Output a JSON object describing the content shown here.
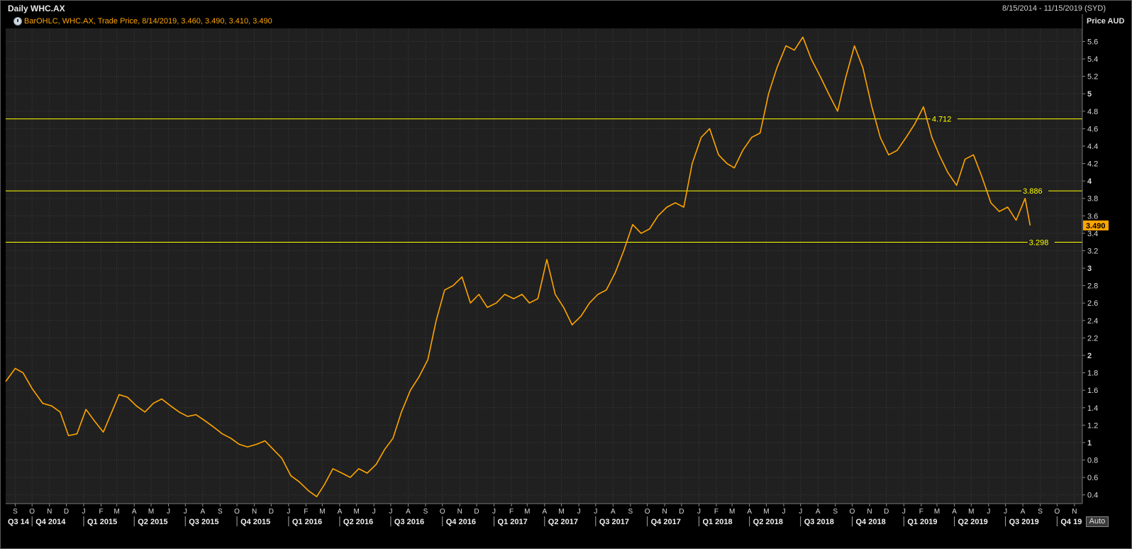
{
  "window": {
    "title": "Daily WHC.AX",
    "date_range": "8/15/2014 - 11/15/2019 (SYD)",
    "legend_text": "BarOHLC, WHC.AX, Trade Price, 8/14/2019, 3.460, 3.490, 3.410, 3.490",
    "auto_label": "Auto"
  },
  "colors": {
    "background": "#202020",
    "grid": "#3c3c3c",
    "price": "#ffa500",
    "hline": "#ffff00",
    "axis_text": "#d8d8d8"
  },
  "chart_data": {
    "type": "line",
    "subtype": "ohlc-bar",
    "series": [
      {
        "name": "WHC.AX",
        "x": [
          "2014-08-15",
          "2014-09-01",
          "2014-09-15",
          "2014-10-01",
          "2014-10-20",
          "2014-11-05",
          "2014-11-20",
          "2014-12-05",
          "2014-12-20",
          "2015-01-05",
          "2015-01-20",
          "2015-02-05",
          "2015-02-20",
          "2015-03-05",
          "2015-03-20",
          "2015-04-05",
          "2015-04-20",
          "2015-05-05",
          "2015-05-20",
          "2015-06-05",
          "2015-06-20",
          "2015-07-05",
          "2015-07-20",
          "2015-08-05",
          "2015-08-20",
          "2015-09-05",
          "2015-09-20",
          "2015-10-05",
          "2015-10-20",
          "2015-11-05",
          "2015-11-20",
          "2015-12-05",
          "2015-12-20",
          "2016-01-05",
          "2016-01-20",
          "2016-02-05",
          "2016-02-20",
          "2016-03-05",
          "2016-03-20",
          "2016-04-05",
          "2016-04-20",
          "2016-05-05",
          "2016-05-20",
          "2016-06-05",
          "2016-06-20",
          "2016-07-05",
          "2016-07-20",
          "2016-08-05",
          "2016-08-20",
          "2016-09-05",
          "2016-09-20",
          "2016-10-05",
          "2016-10-20",
          "2016-11-05",
          "2016-11-20",
          "2016-12-05",
          "2016-12-20",
          "2017-01-05",
          "2017-01-20",
          "2017-02-05",
          "2017-02-20",
          "2017-03-05",
          "2017-03-20",
          "2017-04-05",
          "2017-04-20",
          "2017-05-05",
          "2017-05-20",
          "2017-06-05",
          "2017-06-20",
          "2017-07-05",
          "2017-07-20",
          "2017-08-05",
          "2017-08-20",
          "2017-09-05",
          "2017-09-20",
          "2017-10-05",
          "2017-10-20",
          "2017-11-05",
          "2017-11-20",
          "2017-12-05",
          "2017-12-20",
          "2018-01-05",
          "2018-01-20",
          "2018-02-05",
          "2018-02-20",
          "2018-03-05",
          "2018-03-20",
          "2018-04-05",
          "2018-04-20",
          "2018-05-05",
          "2018-05-20",
          "2018-06-05",
          "2018-06-20",
          "2018-07-05",
          "2018-07-20",
          "2018-08-05",
          "2018-08-20",
          "2018-09-05",
          "2018-09-20",
          "2018-10-05",
          "2018-10-20",
          "2018-11-05",
          "2018-11-20",
          "2018-12-05",
          "2018-12-20",
          "2019-01-05",
          "2019-01-20",
          "2019-02-05",
          "2019-02-20",
          "2019-03-05",
          "2019-03-20",
          "2019-04-05",
          "2019-04-20",
          "2019-05-05",
          "2019-05-20",
          "2019-06-05",
          "2019-06-20",
          "2019-07-05",
          "2019-07-20",
          "2019-08-05",
          "2019-08-14"
        ],
        "values": [
          1.7,
          1.85,
          1.8,
          1.62,
          1.45,
          1.42,
          1.35,
          1.08,
          1.1,
          1.38,
          1.25,
          1.12,
          1.35,
          1.55,
          1.52,
          1.42,
          1.35,
          1.45,
          1.5,
          1.42,
          1.35,
          1.3,
          1.32,
          1.25,
          1.18,
          1.1,
          1.05,
          0.98,
          0.95,
          0.98,
          1.02,
          0.92,
          0.82,
          0.62,
          0.55,
          0.45,
          0.38,
          0.52,
          0.7,
          0.65,
          0.6,
          0.7,
          0.65,
          0.75,
          0.92,
          1.05,
          1.35,
          1.6,
          1.75,
          1.95,
          2.4,
          2.75,
          2.8,
          2.9,
          2.6,
          2.7,
          2.55,
          2.6,
          2.7,
          2.65,
          2.7,
          2.6,
          2.65,
          3.1,
          2.7,
          2.55,
          2.35,
          2.45,
          2.6,
          2.7,
          2.75,
          2.95,
          3.2,
          3.5,
          3.4,
          3.45,
          3.6,
          3.7,
          3.75,
          3.7,
          4.2,
          4.5,
          4.6,
          4.3,
          4.2,
          4.15,
          4.35,
          4.5,
          4.55,
          5.0,
          5.3,
          5.55,
          5.5,
          5.65,
          5.4,
          5.2,
          5.0,
          4.8,
          5.2,
          5.55,
          5.3,
          4.85,
          4.5,
          4.3,
          4.35,
          4.5,
          4.65,
          4.85,
          4.5,
          4.3,
          4.1,
          3.95,
          4.25,
          4.3,
          4.05,
          3.75,
          3.65,
          3.7,
          3.55,
          3.8,
          3.49
        ]
      }
    ],
    "x_range": [
      "2014-08-15",
      "2019-11-15"
    ],
    "ylabel": "Price AUD",
    "ylim": [
      0.3,
      5.75
    ],
    "y_ticks": [
      0.4,
      0.6,
      0.8,
      1,
      1.2,
      1.4,
      1.6,
      1.8,
      2,
      2.2,
      2.4,
      2.6,
      2.8,
      3,
      3.2,
      3.4,
      3.6,
      3.8,
      4,
      4.2,
      4.4,
      4.6,
      4.8,
      5,
      5.2,
      5.4,
      5.6
    ],
    "bold_y_ticks": [
      1,
      2,
      3,
      4,
      5
    ],
    "month_ticks": [
      {
        "label": "S",
        "date": "2014-09-01"
      },
      {
        "label": "O",
        "date": "2014-10-01"
      },
      {
        "label": "N",
        "date": "2014-11-01"
      },
      {
        "label": "D",
        "date": "2014-12-01"
      },
      {
        "label": "J",
        "date": "2015-01-01"
      },
      {
        "label": "F",
        "date": "2015-02-01"
      },
      {
        "label": "M",
        "date": "2015-03-01"
      },
      {
        "label": "A",
        "date": "2015-04-01"
      },
      {
        "label": "M",
        "date": "2015-05-01"
      },
      {
        "label": "J",
        "date": "2015-06-01"
      },
      {
        "label": "J",
        "date": "2015-07-01"
      },
      {
        "label": "A",
        "date": "2015-08-01"
      },
      {
        "label": "S",
        "date": "2015-09-01"
      },
      {
        "label": "O",
        "date": "2015-10-01"
      },
      {
        "label": "N",
        "date": "2015-11-01"
      },
      {
        "label": "D",
        "date": "2015-12-01"
      },
      {
        "label": "J",
        "date": "2016-01-01"
      },
      {
        "label": "F",
        "date": "2016-02-01"
      },
      {
        "label": "M",
        "date": "2016-03-01"
      },
      {
        "label": "A",
        "date": "2016-04-01"
      },
      {
        "label": "M",
        "date": "2016-05-01"
      },
      {
        "label": "J",
        "date": "2016-06-01"
      },
      {
        "label": "J",
        "date": "2016-07-01"
      },
      {
        "label": "A",
        "date": "2016-08-01"
      },
      {
        "label": "S",
        "date": "2016-09-01"
      },
      {
        "label": "O",
        "date": "2016-10-01"
      },
      {
        "label": "N",
        "date": "2016-11-01"
      },
      {
        "label": "D",
        "date": "2016-12-01"
      },
      {
        "label": "J",
        "date": "2017-01-01"
      },
      {
        "label": "F",
        "date": "2017-02-01"
      },
      {
        "label": "M",
        "date": "2017-03-01"
      },
      {
        "label": "A",
        "date": "2017-04-01"
      },
      {
        "label": "M",
        "date": "2017-05-01"
      },
      {
        "label": "J",
        "date": "2017-06-01"
      },
      {
        "label": "J",
        "date": "2017-07-01"
      },
      {
        "label": "A",
        "date": "2017-08-01"
      },
      {
        "label": "S",
        "date": "2017-09-01"
      },
      {
        "label": "O",
        "date": "2017-10-01"
      },
      {
        "label": "N",
        "date": "2017-11-01"
      },
      {
        "label": "D",
        "date": "2017-12-01"
      },
      {
        "label": "J",
        "date": "2018-01-01"
      },
      {
        "label": "F",
        "date": "2018-02-01"
      },
      {
        "label": "M",
        "date": "2018-03-01"
      },
      {
        "label": "A",
        "date": "2018-04-01"
      },
      {
        "label": "M",
        "date": "2018-05-01"
      },
      {
        "label": "J",
        "date": "2018-06-01"
      },
      {
        "label": "J",
        "date": "2018-07-01"
      },
      {
        "label": "A",
        "date": "2018-08-01"
      },
      {
        "label": "S",
        "date": "2018-09-01"
      },
      {
        "label": "O",
        "date": "2018-10-01"
      },
      {
        "label": "N",
        "date": "2018-11-01"
      },
      {
        "label": "D",
        "date": "2018-12-01"
      },
      {
        "label": "J",
        "date": "2019-01-01"
      },
      {
        "label": "F",
        "date": "2019-02-01"
      },
      {
        "label": "M",
        "date": "2019-03-01"
      },
      {
        "label": "A",
        "date": "2019-04-01"
      },
      {
        "label": "M",
        "date": "2019-05-01"
      },
      {
        "label": "J",
        "date": "2019-06-01"
      },
      {
        "label": "J",
        "date": "2019-07-01"
      },
      {
        "label": "A",
        "date": "2019-08-01"
      },
      {
        "label": "S",
        "date": "2019-09-01"
      },
      {
        "label": "O",
        "date": "2019-10-01"
      },
      {
        "label": "N",
        "date": "2019-11-01"
      }
    ],
    "quarter_ticks": [
      {
        "label": "Q3 14",
        "date": "2014-08-15"
      },
      {
        "label": "Q4 2014",
        "date": "2014-10-01"
      },
      {
        "label": "Q1 2015",
        "date": "2015-01-01"
      },
      {
        "label": "Q2 2015",
        "date": "2015-04-01"
      },
      {
        "label": "Q3 2015",
        "date": "2015-07-01"
      },
      {
        "label": "Q4 2015",
        "date": "2015-10-01"
      },
      {
        "label": "Q1 2016",
        "date": "2016-01-01"
      },
      {
        "label": "Q2 2016",
        "date": "2016-04-01"
      },
      {
        "label": "Q3 2016",
        "date": "2016-07-01"
      },
      {
        "label": "Q4 2016",
        "date": "2016-10-01"
      },
      {
        "label": "Q1 2017",
        "date": "2017-01-01"
      },
      {
        "label": "Q2 2017",
        "date": "2017-04-01"
      },
      {
        "label": "Q3 2017",
        "date": "2017-07-01"
      },
      {
        "label": "Q4 2017",
        "date": "2017-10-01"
      },
      {
        "label": "Q1 2018",
        "date": "2018-01-01"
      },
      {
        "label": "Q2 2018",
        "date": "2018-04-01"
      },
      {
        "label": "Q3 2018",
        "date": "2018-07-01"
      },
      {
        "label": "Q4 2018",
        "date": "2018-10-01"
      },
      {
        "label": "Q1 2019",
        "date": "2019-01-01"
      },
      {
        "label": "Q2 2019",
        "date": "2019-04-01"
      },
      {
        "label": "Q3 2019",
        "date": "2019-07-01"
      },
      {
        "label": "Q4 19",
        "date": "2019-10-01"
      }
    ],
    "horizontal_lines": [
      {
        "value": 4.712,
        "label": "4.712",
        "label_date": "2019-02-20"
      },
      {
        "value": 3.886,
        "label": "3.886",
        "label_date": "2019-08-01"
      },
      {
        "value": 3.298,
        "label": "3.298",
        "label_date": "2019-08-12"
      }
    ],
    "last_price": {
      "value": 3.49,
      "label": "3.490"
    },
    "grid": true
  }
}
